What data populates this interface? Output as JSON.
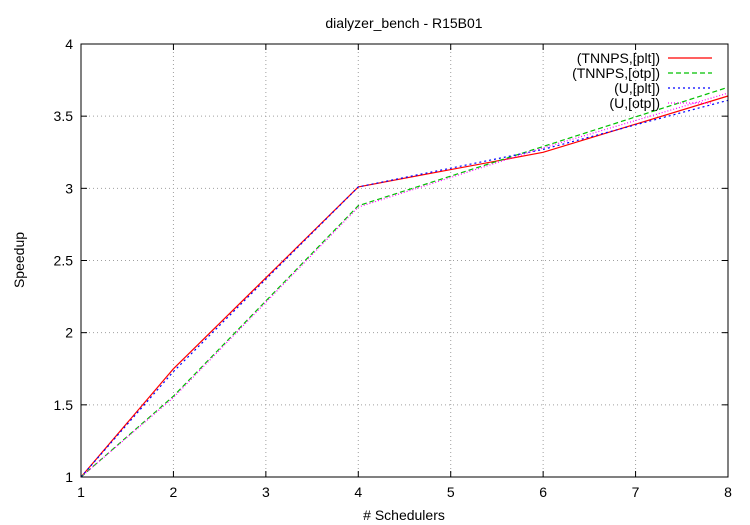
{
  "chart_data": {
    "type": "line",
    "title": "dialyzer_bench - R15B01",
    "xlabel": "# Schedulers",
    "ylabel": "Speedup",
    "xlim": [
      1,
      8
    ],
    "ylim": [
      1,
      4
    ],
    "xticks": [
      1,
      2,
      3,
      4,
      5,
      6,
      7,
      8
    ],
    "yticks": [
      1,
      1.5,
      2,
      2.5,
      3,
      3.5,
      4
    ],
    "grid": true,
    "legend_position": "top-right",
    "x": [
      1,
      2,
      4,
      6,
      8
    ],
    "series": [
      {
        "name": "(TNNPS,[plt])",
        "color": "#ff0000",
        "dash": "solid",
        "values": [
          1.0,
          1.75,
          3.01,
          3.25,
          3.64
        ]
      },
      {
        "name": "(TNNPS,[otp])",
        "color": "#00c000",
        "dash": "dashed",
        "values": [
          1.0,
          1.56,
          2.88,
          3.29,
          3.7
        ]
      },
      {
        "name": "(U,[plt])",
        "color": "#0000ff",
        "dash": "dotted",
        "values": [
          1.0,
          1.73,
          3.01,
          3.27,
          3.61
        ]
      },
      {
        "name": "(U,[otp])",
        "color": "#ff00ff",
        "dash": "dashdot",
        "values": [
          1.0,
          1.55,
          2.87,
          3.28,
          3.66
        ]
      }
    ]
  }
}
